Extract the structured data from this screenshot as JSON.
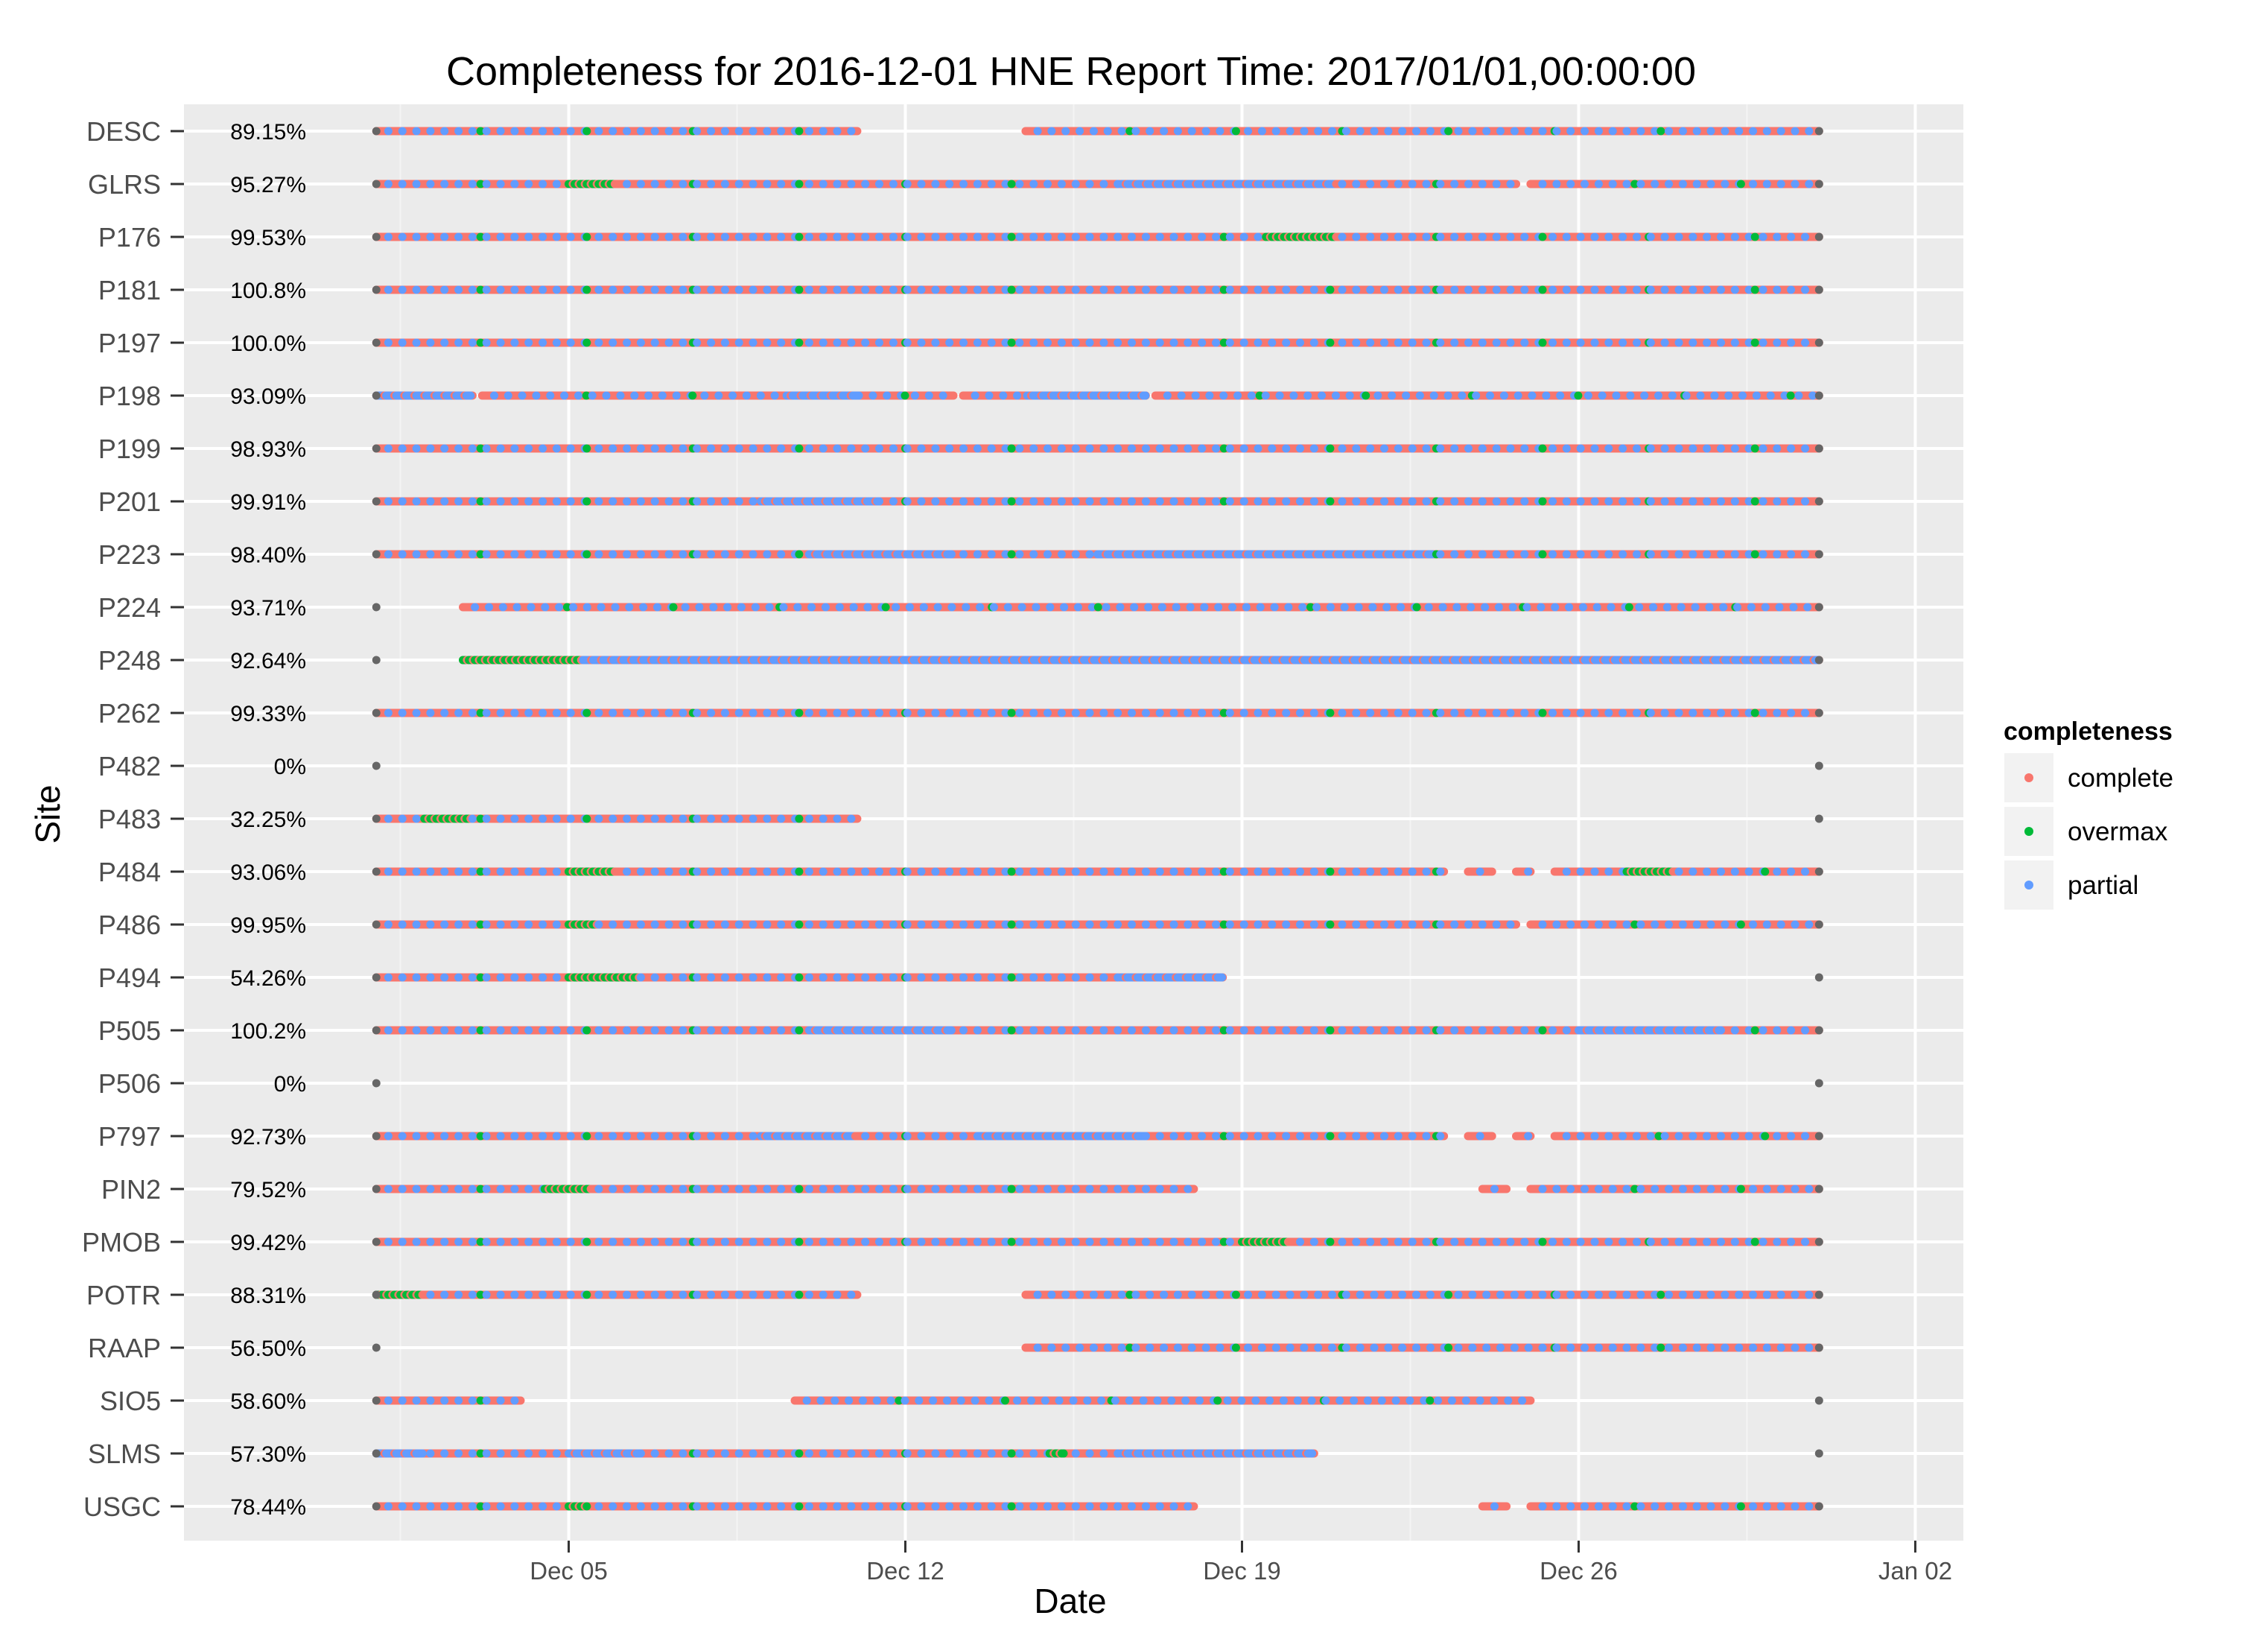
{
  "chart_data": {
    "type": "scatter",
    "title": "Completeness for  2016-12-01 HNE  Report Time:  2017/01/01,00:00:00",
    "xlabel": "Date",
    "ylabel": "Site",
    "xlim": [
      "2016-11-27",
      "2017-01-03"
    ],
    "x_ticks": [
      "Dec 05",
      "Dec 12",
      "Dec 19",
      "Dec 26",
      "Jan 02"
    ],
    "x_tick_dates": [
      "2016-12-05",
      "2016-12-12",
      "2016-12-19",
      "2016-12-26",
      "2017-01-02"
    ],
    "grid": true,
    "legend": {
      "title": "completeness",
      "placement": "right",
      "items": [
        {
          "label": "complete",
          "color": "#F8766D"
        },
        {
          "label": "overmax",
          "color": "#00BA38"
        },
        {
          "label": "partial",
          "color": "#619CFF"
        }
      ]
    },
    "boundary_marker_color": "#666666",
    "boundary_dates": [
      "2016-12-01",
      "2016-12-31"
    ],
    "sites": [
      {
        "name": "USGC",
        "pct": "78.44%",
        "segments": [
          [
            "2016-12-01",
            "2016-12-18"
          ],
          [
            "2016-12-24",
            "2016-12-24.5"
          ],
          [
            "2016-12-25",
            "2016-12-31"
          ]
        ],
        "partial_spans": [],
        "overmax_spans": [
          [
            "2016-12-05",
            "2016-12-05.4"
          ]
        ]
      },
      {
        "name": "SLMS",
        "pct": "57.30%",
        "segments": [
          [
            "2016-12-01",
            "2016-12-20.5"
          ]
        ],
        "partial_spans": [
          [
            "2016-12-01",
            "2016-12-02"
          ],
          [
            "2016-12-05",
            "2016-12-06.5"
          ],
          [
            "2016-12-16.5",
            "2016-12-20.5"
          ]
        ],
        "overmax_spans": [
          [
            "2016-12-15",
            "2016-12-15.3"
          ],
          [
            "2016-12-18",
            "2016-12-18.5"
          ]
        ]
      },
      {
        "name": "SIO5",
        "pct": "58.60%",
        "segments": [
          [
            "2016-12-01",
            "2016-12-04"
          ],
          [
            "2016-12-09.7",
            "2016-12-25"
          ]
        ],
        "partial_spans": [],
        "overmax_spans": []
      },
      {
        "name": "RAAP",
        "pct": "56.50%",
        "segments": [
          [
            "2016-12-14.5",
            "2016-12-31"
          ]
        ],
        "partial_spans": [],
        "overmax_spans": []
      },
      {
        "name": "POTR",
        "pct": "88.31%",
        "segments": [
          [
            "2016-12-01",
            "2016-12-11"
          ],
          [
            "2016-12-14.5",
            "2016-12-31"
          ]
        ],
        "partial_spans": [],
        "overmax_spans": [
          [
            "2016-12-01",
            "2016-12-02"
          ]
        ]
      },
      {
        "name": "PMOB",
        "pct": "99.42%",
        "segments": [
          [
            "2016-12-01",
            "2016-12-31"
          ]
        ],
        "partial_spans": [],
        "overmax_spans": [
          [
            "2016-12-19",
            "2016-12-20"
          ]
        ]
      },
      {
        "name": "PIN2",
        "pct": "79.52%",
        "segments": [
          [
            "2016-12-01",
            "2016-12-18"
          ],
          [
            "2016-12-24",
            "2016-12-24.5"
          ],
          [
            "2016-12-25",
            "2016-12-31"
          ]
        ],
        "partial_spans": [],
        "overmax_spans": [
          [
            "2016-12-04.5",
            "2016-12-05.5"
          ]
        ]
      },
      {
        "name": "P797",
        "pct": "92.73%",
        "segments": [
          [
            "2016-12-01",
            "2016-12-23.2"
          ],
          [
            "2016-12-23.7",
            "2016-12-24.2"
          ],
          [
            "2016-12-24.7",
            "2016-12-25"
          ],
          [
            "2016-12-25.5",
            "2016-12-31"
          ]
        ],
        "partial_spans": [
          [
            "2016-12-09",
            "2016-12-11"
          ],
          [
            "2016-12-13.5",
            "2016-12-17"
          ]
        ],
        "overmax_spans": []
      },
      {
        "name": "P506",
        "pct": "0%",
        "segments": [],
        "partial_spans": [],
        "overmax_spans": []
      },
      {
        "name": "P505",
        "pct": "100.2%",
        "segments": [
          [
            "2016-12-01",
            "2016-12-31"
          ]
        ],
        "partial_spans": [
          [
            "2016-12-10",
            "2016-12-13"
          ],
          [
            "2016-12-26",
            "2016-12-29"
          ]
        ],
        "overmax_spans": []
      },
      {
        "name": "P494",
        "pct": "54.26%",
        "segments": [
          [
            "2016-12-01",
            "2016-12-18.6"
          ]
        ],
        "partial_spans": [
          [
            "2016-12-16.5",
            "2016-12-18.6"
          ]
        ],
        "overmax_spans": [
          [
            "2016-12-05",
            "2016-12-06.5"
          ]
        ]
      },
      {
        "name": "P486",
        "pct": "99.95%",
        "segments": [
          [
            "2016-12-01",
            "2016-12-24.7"
          ],
          [
            "2016-12-25",
            "2016-12-31"
          ]
        ],
        "partial_spans": [],
        "overmax_spans": [
          [
            "2016-12-05",
            "2016-12-05.6"
          ]
        ]
      },
      {
        "name": "P484",
        "pct": "93.06%",
        "segments": [
          [
            "2016-12-01",
            "2016-12-23.2"
          ],
          [
            "2016-12-23.7",
            "2016-12-24.2"
          ],
          [
            "2016-12-24.7",
            "2016-12-25"
          ],
          [
            "2016-12-25.5",
            "2016-12-31"
          ]
        ],
        "partial_spans": [],
        "overmax_spans": [
          [
            "2016-12-05",
            "2016-12-06"
          ],
          [
            "2016-12-27",
            "2016-12-28"
          ]
        ]
      },
      {
        "name": "P483",
        "pct": "32.25%",
        "segments": [
          [
            "2016-12-01",
            "2016-12-11"
          ]
        ],
        "partial_spans": [],
        "overmax_spans": [
          [
            "2016-12-02",
            "2016-12-03"
          ]
        ]
      },
      {
        "name": "P482",
        "pct": "0%",
        "segments": [],
        "partial_spans": [],
        "overmax_spans": []
      },
      {
        "name": "P262",
        "pct": "99.33%",
        "segments": [
          [
            "2016-12-01",
            "2016-12-31"
          ]
        ],
        "partial_spans": [],
        "overmax_spans": []
      },
      {
        "name": "P248",
        "pct": "92.64%",
        "segments": [
          [
            "2016-12-02.8",
            "2016-12-31"
          ]
        ],
        "partial_spans": [
          [
            "2016-12-05.3",
            "2016-12-31"
          ]
        ],
        "overmax_spans": [
          [
            "2016-12-02.8",
            "2016-12-05.3"
          ]
        ]
      },
      {
        "name": "P224",
        "pct": "93.71%",
        "segments": [
          [
            "2016-12-02.8",
            "2016-12-31"
          ]
        ],
        "partial_spans": [],
        "overmax_spans": []
      },
      {
        "name": "P223",
        "pct": "98.40%",
        "segments": [
          [
            "2016-12-01",
            "2016-12-31"
          ]
        ],
        "partial_spans": [
          [
            "2016-12-10",
            "2016-12-13"
          ],
          [
            "2016-12-16",
            "2016-12-23"
          ]
        ],
        "overmax_spans": []
      },
      {
        "name": "P201",
        "pct": "99.91%",
        "segments": [
          [
            "2016-12-01",
            "2016-12-31"
          ]
        ],
        "partial_spans": [
          [
            "2016-12-09",
            "2016-12-11.5"
          ]
        ],
        "overmax_spans": []
      },
      {
        "name": "P199",
        "pct": "98.93%",
        "segments": [
          [
            "2016-12-01",
            "2016-12-31"
          ]
        ],
        "partial_spans": [],
        "overmax_spans": []
      },
      {
        "name": "P198",
        "pct": "93.09%",
        "segments": [
          [
            "2016-12-01",
            "2016-12-03"
          ],
          [
            "2016-12-03.2",
            "2016-12-13"
          ],
          [
            "2016-12-13.2",
            "2016-12-17"
          ],
          [
            "2016-12-17.2",
            "2016-12-31"
          ]
        ],
        "partial_spans": [
          [
            "2016-12-01",
            "2016-12-03"
          ],
          [
            "2016-12-09.5",
            "2016-12-11"
          ],
          [
            "2016-12-14.5",
            "2016-12-17"
          ]
        ],
        "overmax_spans": []
      },
      {
        "name": "P197",
        "pct": "100.0%",
        "segments": [
          [
            "2016-12-01",
            "2016-12-31"
          ]
        ],
        "partial_spans": [],
        "overmax_spans": []
      },
      {
        "name": "P181",
        "pct": "100.8%",
        "segments": [
          [
            "2016-12-01",
            "2016-12-31"
          ]
        ],
        "partial_spans": [],
        "overmax_spans": []
      },
      {
        "name": "P176",
        "pct": "99.53%",
        "segments": [
          [
            "2016-12-01",
            "2016-12-31"
          ]
        ],
        "partial_spans": [],
        "overmax_spans": [
          [
            "2016-12-19.5",
            "2016-12-21"
          ]
        ]
      },
      {
        "name": "GLRS",
        "pct": "95.27%",
        "segments": [
          [
            "2016-12-01",
            "2016-12-24.7"
          ],
          [
            "2016-12-25",
            "2016-12-31"
          ]
        ],
        "partial_spans": [
          [
            "2016-12-16.5",
            "2016-12-21"
          ]
        ],
        "overmax_spans": [
          [
            "2016-12-05",
            "2016-12-06"
          ]
        ]
      },
      {
        "name": "DESC",
        "pct": "89.15%",
        "segments": [
          [
            "2016-12-01",
            "2016-12-11"
          ],
          [
            "2016-12-14.5",
            "2016-12-31"
          ]
        ],
        "partial_spans": [],
        "overmax_spans": []
      }
    ]
  }
}
